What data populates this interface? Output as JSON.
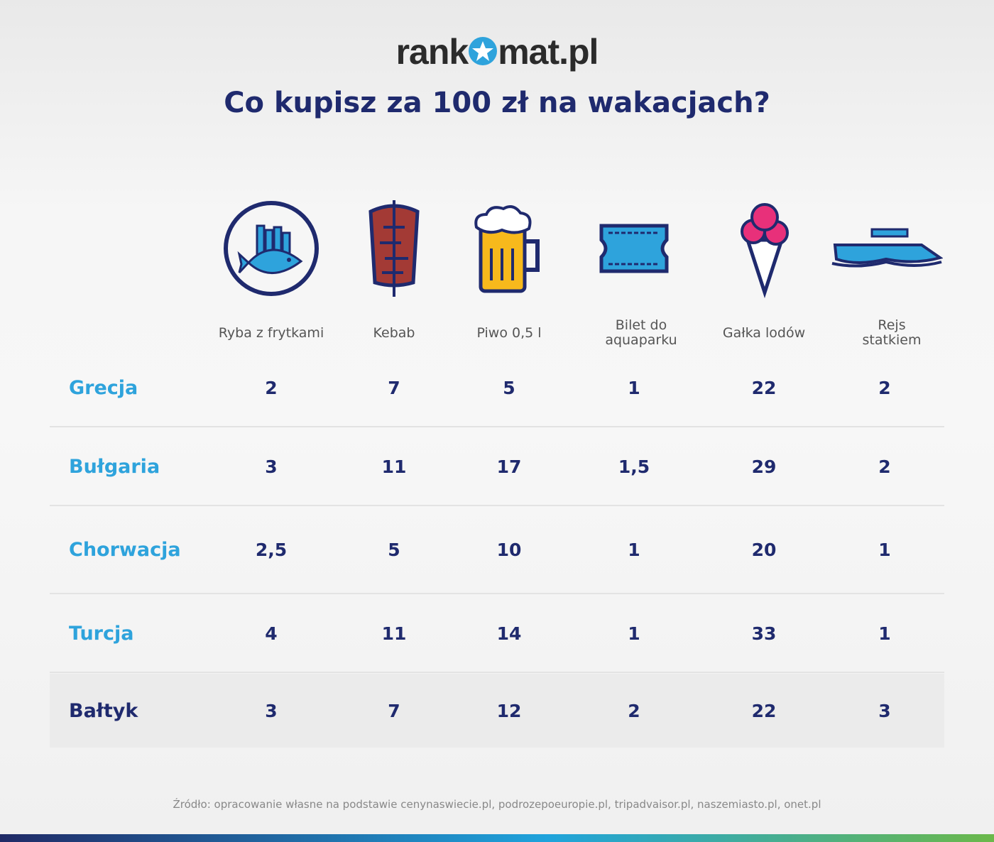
{
  "logo": {
    "left": "rank",
    "right": "mat.pl",
    "icon": "star-circle-icon"
  },
  "title": "Co kupisz za 100 zł na wakacjach?",
  "columns": [
    {
      "label": "Ryba z frytkami",
      "icon": "fish-and-chips-icon"
    },
    {
      "label": "Kebab",
      "icon": "kebab-icon"
    },
    {
      "label": "Piwo 0,5 l",
      "icon": "beer-mug-icon"
    },
    {
      "label": "Bilet do aquaparku",
      "icon": "ticket-icon"
    },
    {
      "label": "Gałka lodów",
      "icon": "ice-cream-icon"
    },
    {
      "label": "Rejs statkiem",
      "icon": "boat-icon"
    }
  ],
  "rows": [
    {
      "label": "Grecja",
      "values": [
        "2",
        "7",
        "5",
        "1",
        "22",
        "2"
      ]
    },
    {
      "label": "Bułgaria",
      "values": [
        "3",
        "11",
        "17",
        "1,5",
        "29",
        "2"
      ]
    },
    {
      "label": "Chorwacja",
      "values": [
        "2,5",
        "5",
        "10",
        "1",
        "20",
        "1"
      ]
    },
    {
      "label": "Turcja",
      "values": [
        "4",
        "11",
        "14",
        "1",
        "33",
        "1"
      ]
    },
    {
      "label": "Bałtyk",
      "values": [
        "3",
        "7",
        "12",
        "2",
        "22",
        "3"
      ]
    }
  ],
  "source": "Źródło: opracowanie własne na podstawie cenynaswiecie.pl, podrozepoeuropie.pl, tripadvaisor.pl, naszemiasto.pl, onet.pl",
  "colors": {
    "navy": "#1f2a6e",
    "blue": "#2ea3dc",
    "red": "#a33a35",
    "yellow": "#f7b91c",
    "pink": "#e8307a"
  }
}
